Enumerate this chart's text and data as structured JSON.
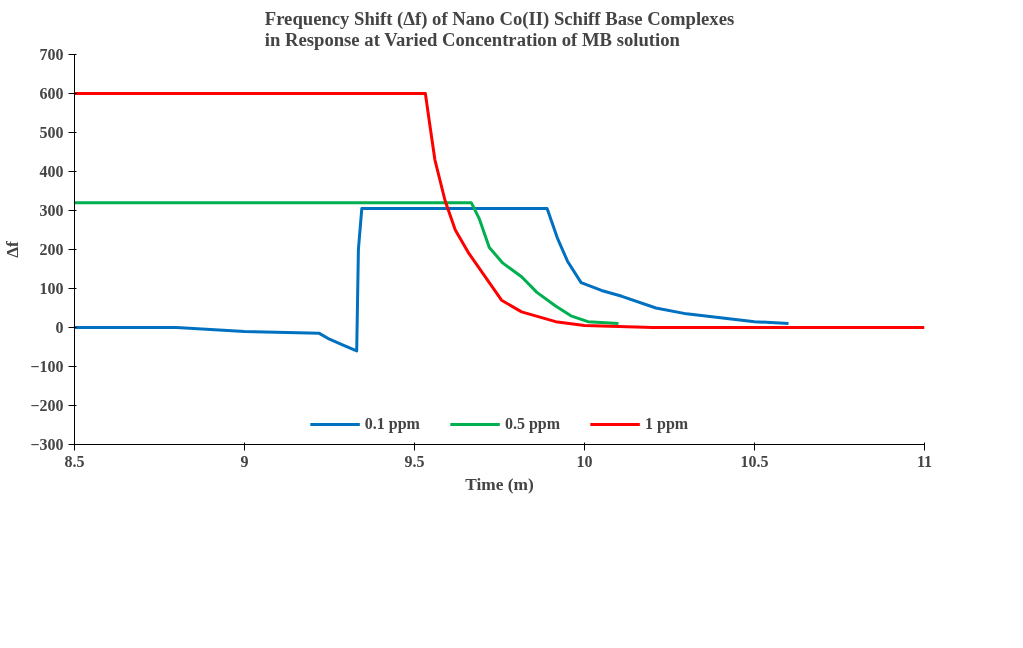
{
  "chart_data": {
    "type": "line",
    "title": "Frequency Shift (Δf) of Nano Co(II) Schiff Base Complexes in Response at Varied Concentration of  MB solution",
    "xlabel": "Time (m)",
    "ylabel": "Δf",
    "xlim": [
      8.5,
      11
    ],
    "xticks": [
      {
        "value": 8.5,
        "label": "8.5"
      },
      9,
      {
        "value": 9.5,
        "label": "9.5"
      },
      10,
      {
        "value": 10.5,
        "label": "10.5"
      },
      11
    ],
    "ylim": [
      -300,
      700
    ],
    "yticks": [
      -300,
      -200,
      -100,
      0,
      100,
      200,
      300,
      400,
      500,
      600,
      700
    ],
    "grid": false,
    "legend": "bottom",
    "marker": "none",
    "line_style": "solid",
    "series": [
      {
        "name": "0.1 ppm",
        "color": "#0070c0",
        "x": [
          8.5,
          8.8,
          8.9,
          9.0,
          9.22,
          9.25,
          9.29,
          9.33,
          9.335,
          9.345,
          9.5,
          9.7,
          9.89,
          9.92,
          9.95,
          9.99,
          10.05,
          10.11,
          10.21,
          10.3,
          10.4,
          10.5,
          10.6
        ],
        "values": [
          0,
          0,
          -5,
          -10,
          -15,
          -30,
          -45,
          -60,
          200,
          305,
          305,
          305,
          305,
          230,
          170,
          115,
          95,
          80,
          50,
          35,
          25,
          15,
          10
        ]
      },
      {
        "name": "0.5 ppm",
        "color": "#00b050",
        "x": [
          8.5,
          9.0,
          9.5,
          9.667,
          9.69,
          9.72,
          9.76,
          9.815,
          9.86,
          9.915,
          9.96,
          10.01,
          10.1
        ],
        "values": [
          320,
          320,
          320,
          320,
          280,
          205,
          165,
          130,
          90,
          55,
          30,
          15,
          10
        ]
      },
      {
        "name": "1 ppm",
        "color": "#ff0000",
        "x": [
          8.5,
          9.0,
          9.532,
          9.545,
          9.56,
          9.59,
          9.62,
          9.66,
          9.72,
          9.756,
          9.815,
          9.915,
          10.0,
          10.2,
          10.5,
          11.0
        ],
        "values": [
          600,
          600,
          600,
          520,
          430,
          325,
          250,
          190,
          115,
          70,
          40,
          15,
          5,
          0,
          0,
          0
        ]
      }
    ]
  }
}
